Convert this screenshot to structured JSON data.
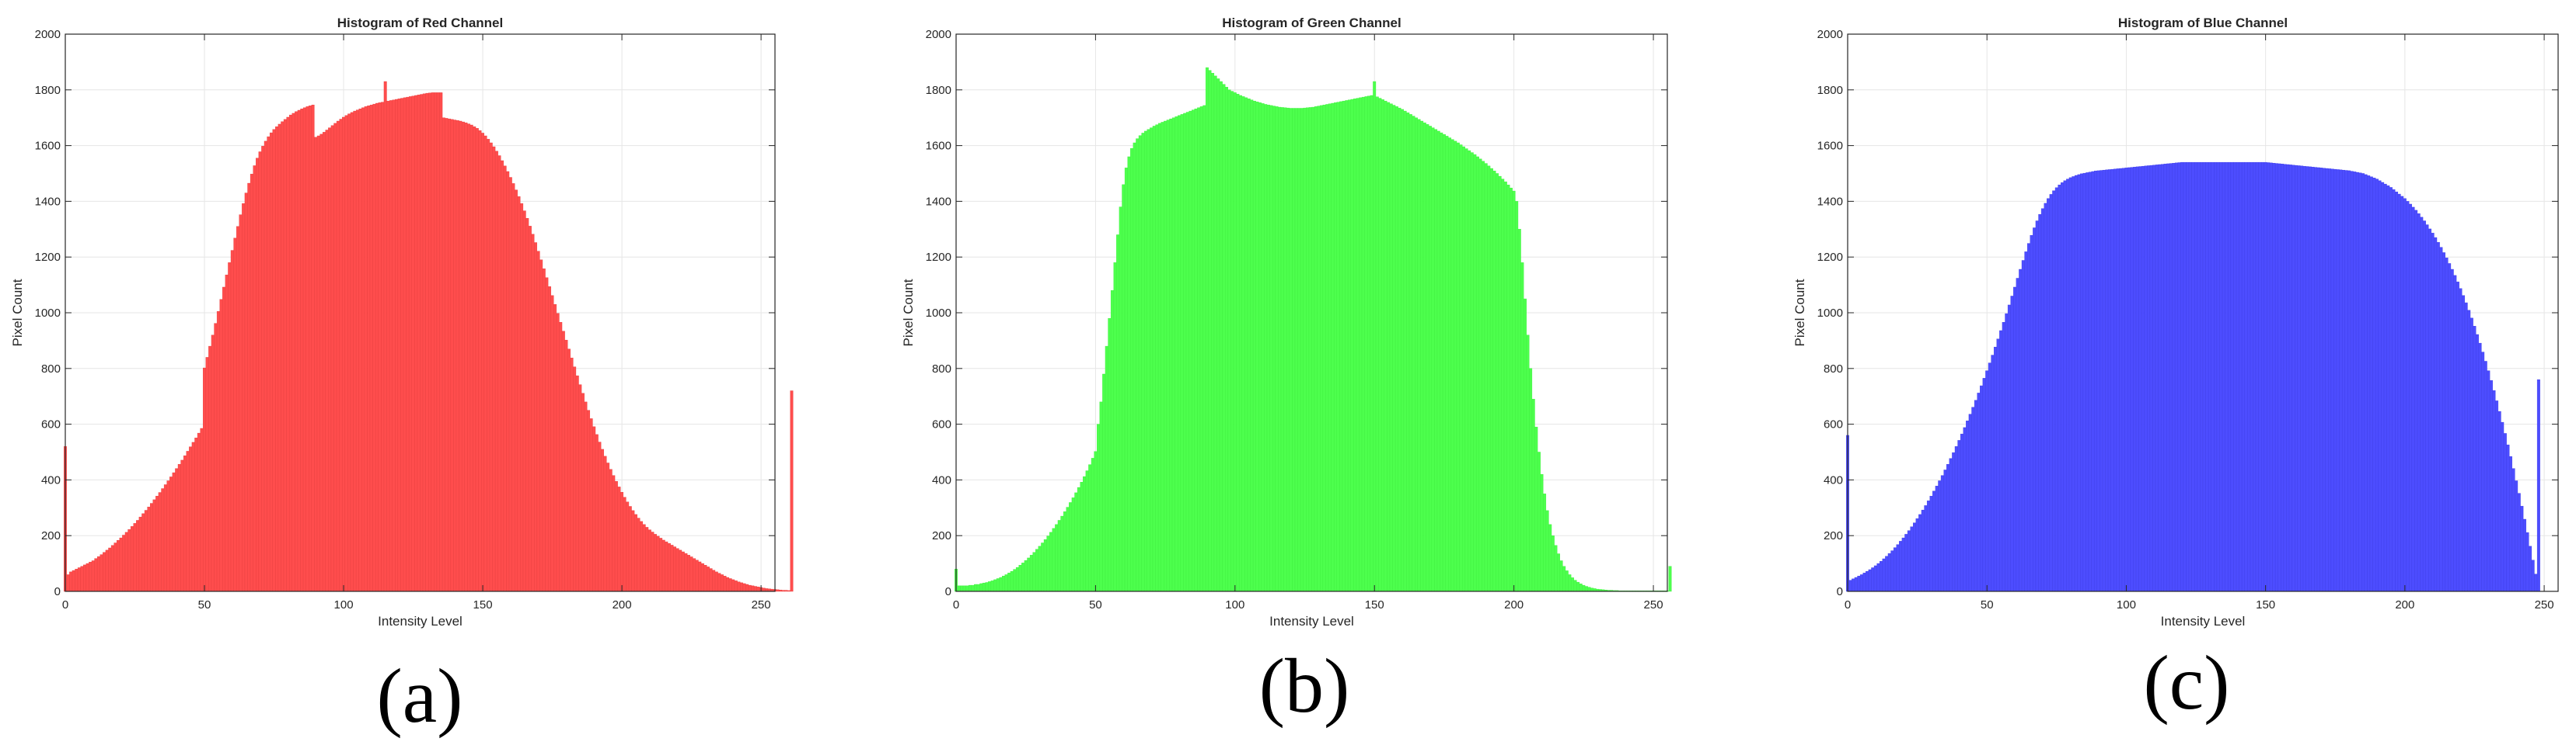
{
  "chart_data": [
    {
      "type": "bar",
      "title": "Histogram of Red Channel",
      "xlabel": "Intensity Level",
      "ylabel": "Pixel Count",
      "caption": "(a)",
      "color": "#ff4d4d",
      "edge_color": "#e83c3c",
      "xlim": [
        0,
        255
      ],
      "ylim": [
        0,
        2000
      ],
      "xticks": [
        0,
        50,
        100,
        150,
        200,
        250
      ],
      "yticks": [
        0,
        200,
        400,
        600,
        800,
        1000,
        1200,
        1400,
        1600,
        1800,
        2000
      ],
      "grid": true,
      "x_start": 0,
      "x_step": 1,
      "values": [
        520,
        60,
        70,
        75,
        80,
        85,
        90,
        95,
        100,
        105,
        110,
        118,
        125,
        132,
        140,
        148,
        156,
        165,
        174,
        183,
        192,
        202,
        212,
        222,
        233,
        244,
        255,
        267,
        279,
        291,
        303,
        316,
        329,
        342,
        355,
        369,
        383,
        397,
        411,
        426,
        441,
        456,
        471,
        487,
        503,
        519,
        535,
        551,
        568,
        585,
        802,
        840,
        880,
        920,
        962,
        1005,
        1048,
        1092,
        1136,
        1180,
        1224,
        1268,
        1310,
        1352,
        1392,
        1430,
        1465,
        1498,
        1528,
        1555,
        1578,
        1598,
        1616,
        1632,
        1646,
        1658,
        1668,
        1677,
        1686,
        1694,
        1702,
        1710,
        1716,
        1722,
        1727,
        1732,
        1736,
        1740,
        1743,
        1746,
        1630,
        1635,
        1641,
        1648,
        1656,
        1664,
        1672,
        1680,
        1688,
        1695,
        1702,
        1708,
        1714,
        1719,
        1724,
        1728,
        1732,
        1736,
        1740,
        1743,
        1746,
        1749,
        1752,
        1754,
        1756,
        1830,
        1760,
        1762,
        1764,
        1766,
        1768,
        1770,
        1772,
        1774,
        1776,
        1778,
        1780,
        1782,
        1784,
        1786,
        1788,
        1789,
        1790,
        1790,
        1790,
        1790,
        1700,
        1698,
        1696,
        1694,
        1692,
        1690,
        1688,
        1685,
        1682,
        1678,
        1674,
        1668,
        1662,
        1654,
        1645,
        1635,
        1623,
        1610,
        1596,
        1580,
        1564,
        1546,
        1527,
        1507,
        1486,
        1464,
        1441,
        1417,
        1392,
        1366,
        1339,
        1311,
        1282,
        1252,
        1221,
        1190,
        1158,
        1126,
        1094,
        1062,
        1030,
        998,
        966,
        934,
        902,
        870,
        838,
        806,
        774,
        742,
        711,
        680,
        650,
        620,
        591,
        563,
        536,
        510,
        485,
        461,
        438,
        416,
        395,
        375,
        356,
        338,
        321,
        305,
        290,
        276,
        263,
        251,
        240,
        230,
        221,
        213,
        205,
        198,
        191,
        184,
        178,
        172,
        166,
        160,
        154,
        148,
        142,
        136,
        130,
        124,
        118,
        112,
        106,
        100,
        94,
        88,
        82,
        76,
        70,
        65,
        60,
        55,
        50,
        46,
        42,
        38,
        34,
        31,
        28,
        25,
        22,
        20,
        18,
        16,
        14,
        12,
        10,
        9,
        8,
        7,
        6,
        5,
        4,
        4,
        3,
        720
      ]
    },
    {
      "type": "bar",
      "title": "Histogram of Green Channel",
      "xlabel": "Intensity Level",
      "ylabel": "Pixel Count",
      "caption": "(b)",
      "color": "#4dff4d",
      "edge_color": "#3cee3c",
      "xlim": [
        0,
        255
      ],
      "ylim": [
        0,
        2000
      ],
      "xticks": [
        0,
        50,
        100,
        150,
        200,
        250
      ],
      "yticks": [
        0,
        200,
        400,
        600,
        800,
        1000,
        1200,
        1400,
        1600,
        1800,
        2000
      ],
      "grid": true,
      "x_start": 0,
      "x_step": 1,
      "values": [
        80,
        20,
        20,
        20,
        20,
        22,
        22,
        25,
        25,
        28,
        30,
        32,
        35,
        38,
        42,
        46,
        50,
        55,
        60,
        66,
        72,
        79,
        86,
        94,
        102,
        111,
        120,
        130,
        140,
        151,
        162,
        174,
        186,
        199,
        212,
        226,
        240,
        255,
        270,
        286,
        302,
        319,
        336,
        354,
        373,
        392,
        412,
        433,
        455,
        478,
        502,
        600,
        680,
        780,
        880,
        980,
        1080,
        1180,
        1280,
        1380,
        1460,
        1520,
        1560,
        1590,
        1610,
        1625,
        1636,
        1645,
        1652,
        1658,
        1664,
        1670,
        1675,
        1680,
        1684,
        1688,
        1692,
        1696,
        1700,
        1704,
        1708,
        1712,
        1716,
        1720,
        1724,
        1728,
        1732,
        1736,
        1740,
        1744,
        1880,
        1870,
        1860,
        1850,
        1840,
        1830,
        1820,
        1810,
        1800,
        1795,
        1790,
        1785,
        1780,
        1776,
        1772,
        1768,
        1764,
        1760,
        1757,
        1754,
        1751,
        1748,
        1746,
        1744,
        1742,
        1740,
        1738,
        1737,
        1736,
        1735,
        1734,
        1734,
        1734,
        1734,
        1734,
        1735,
        1736,
        1737,
        1738,
        1740,
        1742,
        1744,
        1746,
        1748,
        1750,
        1752,
        1754,
        1756,
        1758,
        1760,
        1762,
        1764,
        1766,
        1768,
        1770,
        1772,
        1774,
        1776,
        1778,
        1780,
        1830,
        1775,
        1770,
        1765,
        1760,
        1755,
        1750,
        1745,
        1740,
        1735,
        1730,
        1724,
        1718,
        1712,
        1706,
        1700,
        1694,
        1688,
        1682,
        1676,
        1670,
        1664,
        1658,
        1652,
        1646,
        1640,
        1634,
        1628,
        1622,
        1616,
        1610,
        1603,
        1596,
        1589,
        1582,
        1575,
        1568,
        1560,
        1552,
        1544,
        1536,
        1527,
        1518,
        1509,
        1500,
        1490,
        1480,
        1470,
        1459,
        1448,
        1437,
        1400,
        1300,
        1180,
        1050,
        920,
        800,
        690,
        590,
        500,
        420,
        350,
        290,
        240,
        200,
        165,
        135,
        110,
        90,
        74,
        60,
        49,
        40,
        33,
        27,
        22,
        18,
        15,
        12,
        10,
        8,
        7,
        6,
        5,
        4,
        4,
        3,
        3,
        2,
        2,
        2,
        2,
        2,
        2,
        2,
        2,
        2,
        2,
        2,
        2,
        2,
        2,
        2,
        2,
        2,
        2,
        90
      ]
    },
    {
      "type": "bar",
      "title": "Histogram of Blue Channel",
      "xlabel": "Intensity Level",
      "ylabel": "Pixel Count",
      "caption": "(c)",
      "color": "#4d4dff",
      "edge_color": "#3c3ce8",
      "xlim": [
        0,
        255
      ],
      "ylim": [
        0,
        2000
      ],
      "xticks": [
        0,
        50,
        100,
        150,
        200,
        250
      ],
      "yticks": [
        0,
        200,
        400,
        600,
        800,
        1000,
        1200,
        1400,
        1600,
        1800,
        2000
      ],
      "grid": true,
      "x_start": 0,
      "x_step": 1,
      "values": [
        560,
        40,
        45,
        50,
        55,
        60,
        66,
        72,
        78,
        85,
        92,
        100,
        108,
        117,
        126,
        136,
        146,
        157,
        168,
        180,
        192,
        205,
        218,
        232,
        246,
        261,
        276,
        292,
        308,
        325,
        342,
        360,
        378,
        397,
        416,
        436,
        456,
        477,
        498,
        520,
        542,
        565,
        588,
        612,
        636,
        661,
        686,
        712,
        738,
        765,
        792,
        820,
        848,
        877,
        906,
        936,
        966,
        997,
        1028,
        1060,
        1092,
        1124,
        1156,
        1188,
        1219,
        1249,
        1278,
        1305,
        1330,
        1353,
        1374,
        1393,
        1410,
        1425,
        1438,
        1449,
        1459,
        1467,
        1474,
        1480,
        1485,
        1489,
        1493,
        1496,
        1499,
        1501,
        1503,
        1505,
        1507,
        1509,
        1510,
        1511,
        1512,
        1513,
        1514,
        1515,
        1516,
        1517,
        1518,
        1519,
        1520,
        1521,
        1522,
        1523,
        1524,
        1525,
        1526,
        1527,
        1528,
        1529,
        1530,
        1531,
        1532,
        1533,
        1534,
        1535,
        1536,
        1537,
        1538,
        1539,
        1540,
        1540,
        1540,
        1540,
        1540,
        1540,
        1540,
        1540,
        1540,
        1540,
        1540,
        1540,
        1540,
        1540,
        1540,
        1540,
        1540,
        1540,
        1540,
        1540,
        1540,
        1540,
        1540,
        1540,
        1540,
        1540,
        1540,
        1540,
        1540,
        1540,
        1540,
        1539,
        1538,
        1537,
        1536,
        1535,
        1534,
        1533,
        1532,
        1531,
        1530,
        1529,
        1528,
        1527,
        1526,
        1525,
        1524,
        1523,
        1522,
        1521,
        1520,
        1519,
        1518,
        1517,
        1516,
        1515,
        1514,
        1513,
        1512,
        1511,
        1510,
        1508,
        1506,
        1504,
        1502,
        1500,
        1496,
        1492,
        1488,
        1484,
        1480,
        1474,
        1468,
        1462,
        1456,
        1450,
        1442,
        1434,
        1426,
        1418,
        1410,
        1400,
        1390,
        1379,
        1368,
        1356,
        1343,
        1330,
        1316,
        1301,
        1286,
        1270,
        1253,
        1235,
        1216,
        1197,
        1177,
        1156,
        1134,
        1111,
        1087,
        1062,
        1036,
        1009,
        981,
        952,
        922,
        891,
        859,
        826,
        792,
        757,
        721,
        684,
        646,
        607,
        567,
        526,
        484,
        441,
        397,
        352,
        306,
        259,
        211,
        162,
        112,
        62,
        760
      ]
    }
  ]
}
